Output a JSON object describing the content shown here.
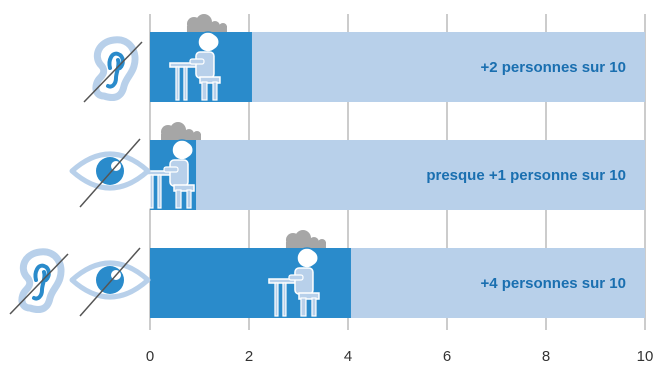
{
  "chart_data": {
    "type": "bar",
    "orientation": "horizontal",
    "stacked_background": true,
    "categories": [
      "hearing-impairment",
      "vision-impairment",
      "hearing-and-vision-impairment"
    ],
    "values": [
      2.06,
      0.93,
      4.06
    ],
    "max": 10,
    "bar_labels": [
      "+2 personnes sur 10",
      "presque +1 personne sur 10",
      "+4 personnes sur 10"
    ],
    "xlim": [
      0,
      10
    ],
    "xticks": [
      0,
      2,
      4,
      6,
      8,
      10
    ],
    "grid": true,
    "title": "",
    "xlabel": "",
    "ylabel": ""
  },
  "colors": {
    "bar": "#2a8bcb",
    "background_bar": "#b8d0ea",
    "label_text": "#1a6fb0",
    "gridline": "#9a9a9a",
    "icon_outline": "#b8d0ea",
    "icon_accent": "#2a8bcb",
    "cloud": "#a6a6a6",
    "slash": "#555555"
  },
  "icons": [
    [
      "ear-icon"
    ],
    [
      "eye-icon"
    ],
    [
      "ear-icon",
      "eye-icon"
    ]
  ]
}
